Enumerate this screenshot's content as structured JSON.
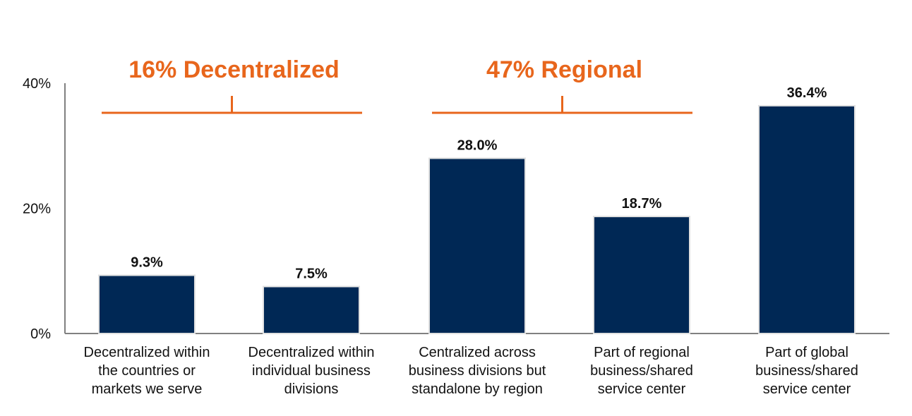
{
  "chart_data": {
    "type": "bar",
    "categories": [
      [
        "Decentralized within",
        "the countries or",
        "markets we serve"
      ],
      [
        "Decentralized within",
        "individual business",
        "divisions"
      ],
      [
        "Centralized across",
        "business divisions but",
        "standalone by region"
      ],
      [
        "Part of regional",
        "business/shared",
        "service center"
      ],
      [
        "Part of global",
        "business/shared",
        "service center"
      ]
    ],
    "values": [
      9.3,
      7.5,
      28.0,
      18.7,
      36.4
    ],
    "value_labels": [
      "9.3%",
      "7.5%",
      "28.0%",
      "18.7%",
      "36.4%"
    ],
    "ylim": [
      0,
      40
    ],
    "yticks": [
      {
        "value": 0,
        "label": "0%"
      },
      {
        "value": 20,
        "label": "20%"
      },
      {
        "value": 40,
        "label": "40%"
      }
    ],
    "grid": false,
    "groups": [
      {
        "label": "16% Decentralized",
        "categories": [
          0,
          1
        ]
      },
      {
        "label": "47% Regional",
        "categories": [
          2,
          3
        ]
      }
    ],
    "colors": {
      "bar": "#002855",
      "bar_outline": "#e0e0e0",
      "accent": "#e8661c",
      "axis": "#808080"
    }
  }
}
